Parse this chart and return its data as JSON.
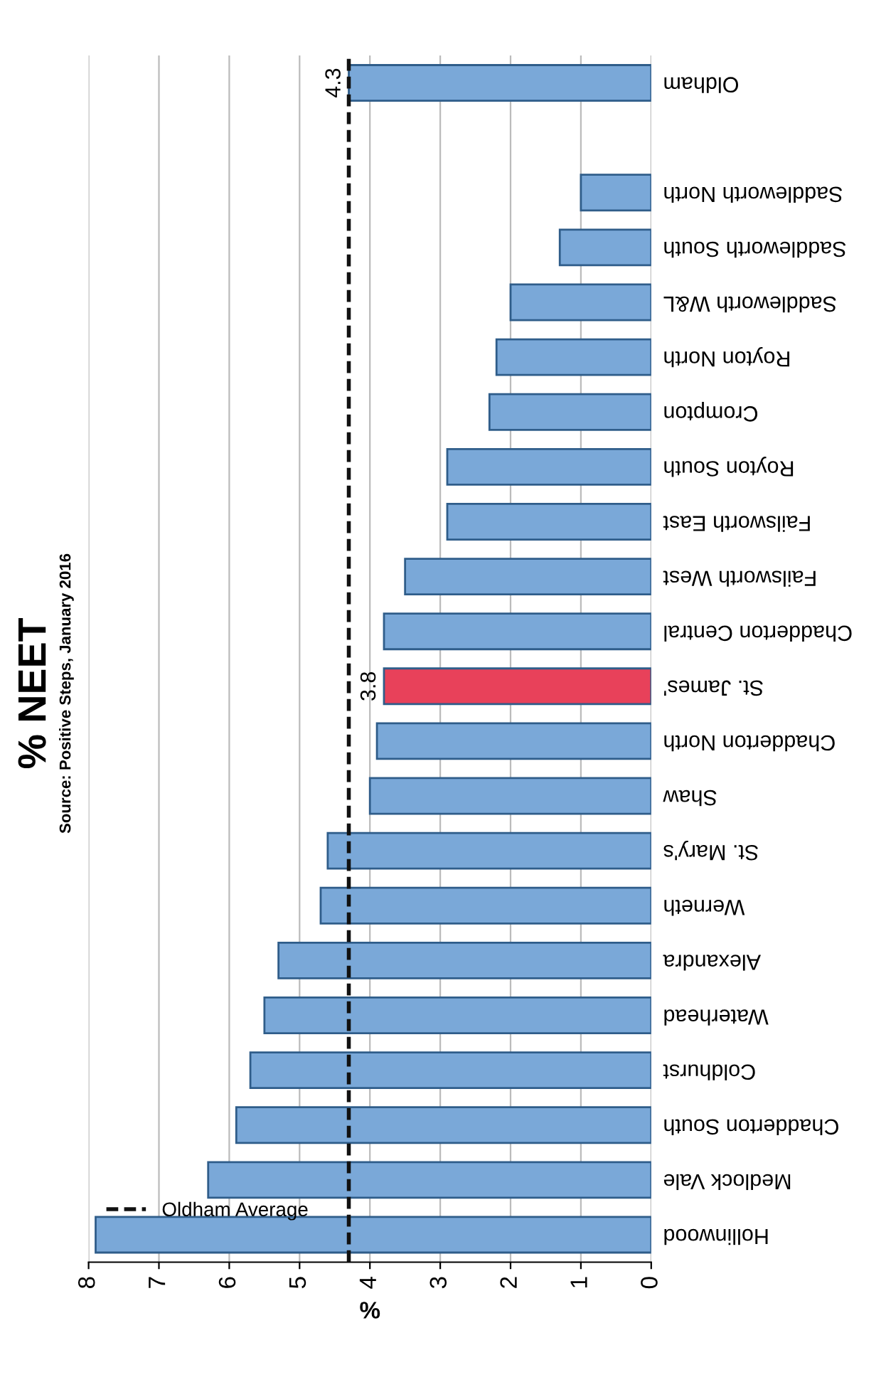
{
  "chart_data": {
    "type": "bar",
    "orientation": "horizontal",
    "title": "% NEET",
    "subtitle": "Source: Positive Steps, January 2016",
    "xlabel": "%",
    "categories": [
      "Oldham",
      null,
      "Saddleworth North",
      "Saddleworth South",
      "Saddleworth W&L",
      "Royton North",
      "Crompton",
      "Royton South",
      "Failsworth East",
      "Failsworth West",
      "Chadderton Central",
      "St. James'",
      "Chadderton North",
      "Shaw",
      "St. Mary's",
      "Werneth",
      "Alexandra",
      "Waterhead",
      "Coldhurst",
      "Chadderton South",
      "Medlock Vale",
      "Hollinwood"
    ],
    "values": [
      4.3,
      null,
      1.0,
      1.3,
      2.0,
      2.2,
      2.3,
      2.9,
      2.9,
      3.5,
      3.8,
      3.8,
      3.9,
      4.0,
      4.6,
      4.7,
      5.3,
      5.5,
      5.7,
      5.9,
      6.3,
      7.9
    ],
    "colors": [
      "#7aa8d8",
      null,
      "#7aa8d8",
      "#7aa8d8",
      "#7aa8d8",
      "#7aa8d8",
      "#7aa8d8",
      "#7aa8d8",
      "#7aa8d8",
      "#7aa8d8",
      "#7aa8d8",
      "#e8415a",
      "#7aa8d8",
      "#7aa8d8",
      "#7aa8d8",
      "#7aa8d8",
      "#7aa8d8",
      "#7aa8d8",
      "#7aa8d8",
      "#7aa8d8",
      "#7aa8d8",
      "#7aa8d8"
    ],
    "value_labels": [
      "4.3",
      null,
      null,
      null,
      null,
      null,
      null,
      null,
      null,
      null,
      null,
      "3.8",
      null,
      null,
      null,
      null,
      null,
      null,
      null,
      null,
      null,
      null
    ],
    "xlim": [
      8,
      0
    ],
    "xticks": [
      0,
      1,
      2,
      3,
      4,
      5,
      6,
      7,
      8
    ],
    "ref_lines": [
      {
        "axis": "x",
        "value": 4.3,
        "label": "Oldham Average",
        "color": "#111111",
        "line_style": "dashed"
      }
    ],
    "grid": "x",
    "legend": "bottom left"
  }
}
